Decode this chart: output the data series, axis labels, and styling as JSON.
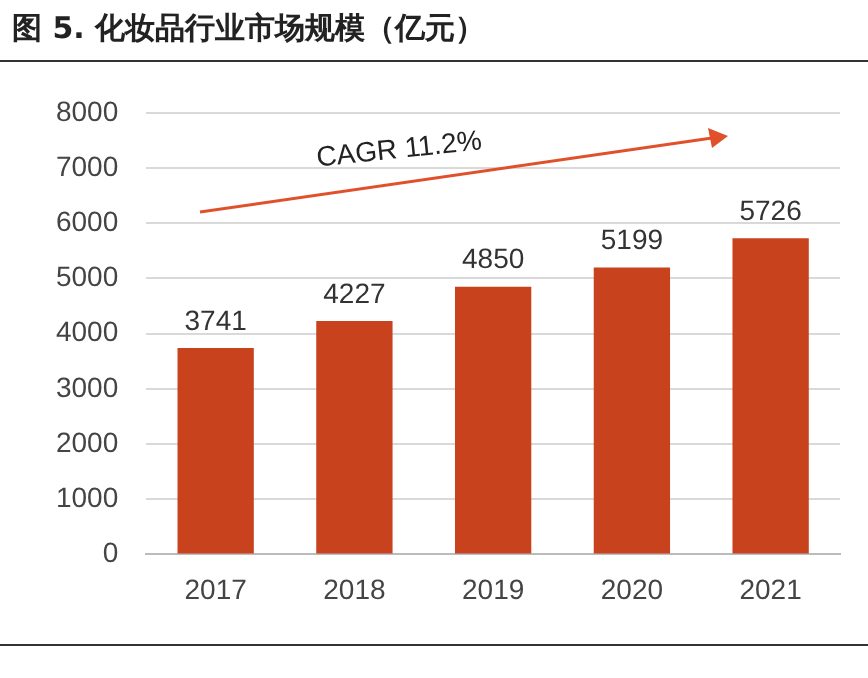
{
  "chart_data": {
    "type": "bar",
    "title": "图 5. 化妆品行业市场规模（亿元）",
    "categories": [
      "2017",
      "2018",
      "2019",
      "2020",
      "2021"
    ],
    "values": [
      3741,
      4227,
      4850,
      5199,
      5726
    ],
    "color": "#c8421e",
    "ylim": [
      0,
      8000
    ],
    "yticks": [
      0,
      1000,
      2000,
      3000,
      4000,
      5000,
      6000,
      7000,
      8000
    ],
    "grid": "y",
    "data_labels": true,
    "annotations": [
      "CAGR 11.2%"
    ]
  }
}
